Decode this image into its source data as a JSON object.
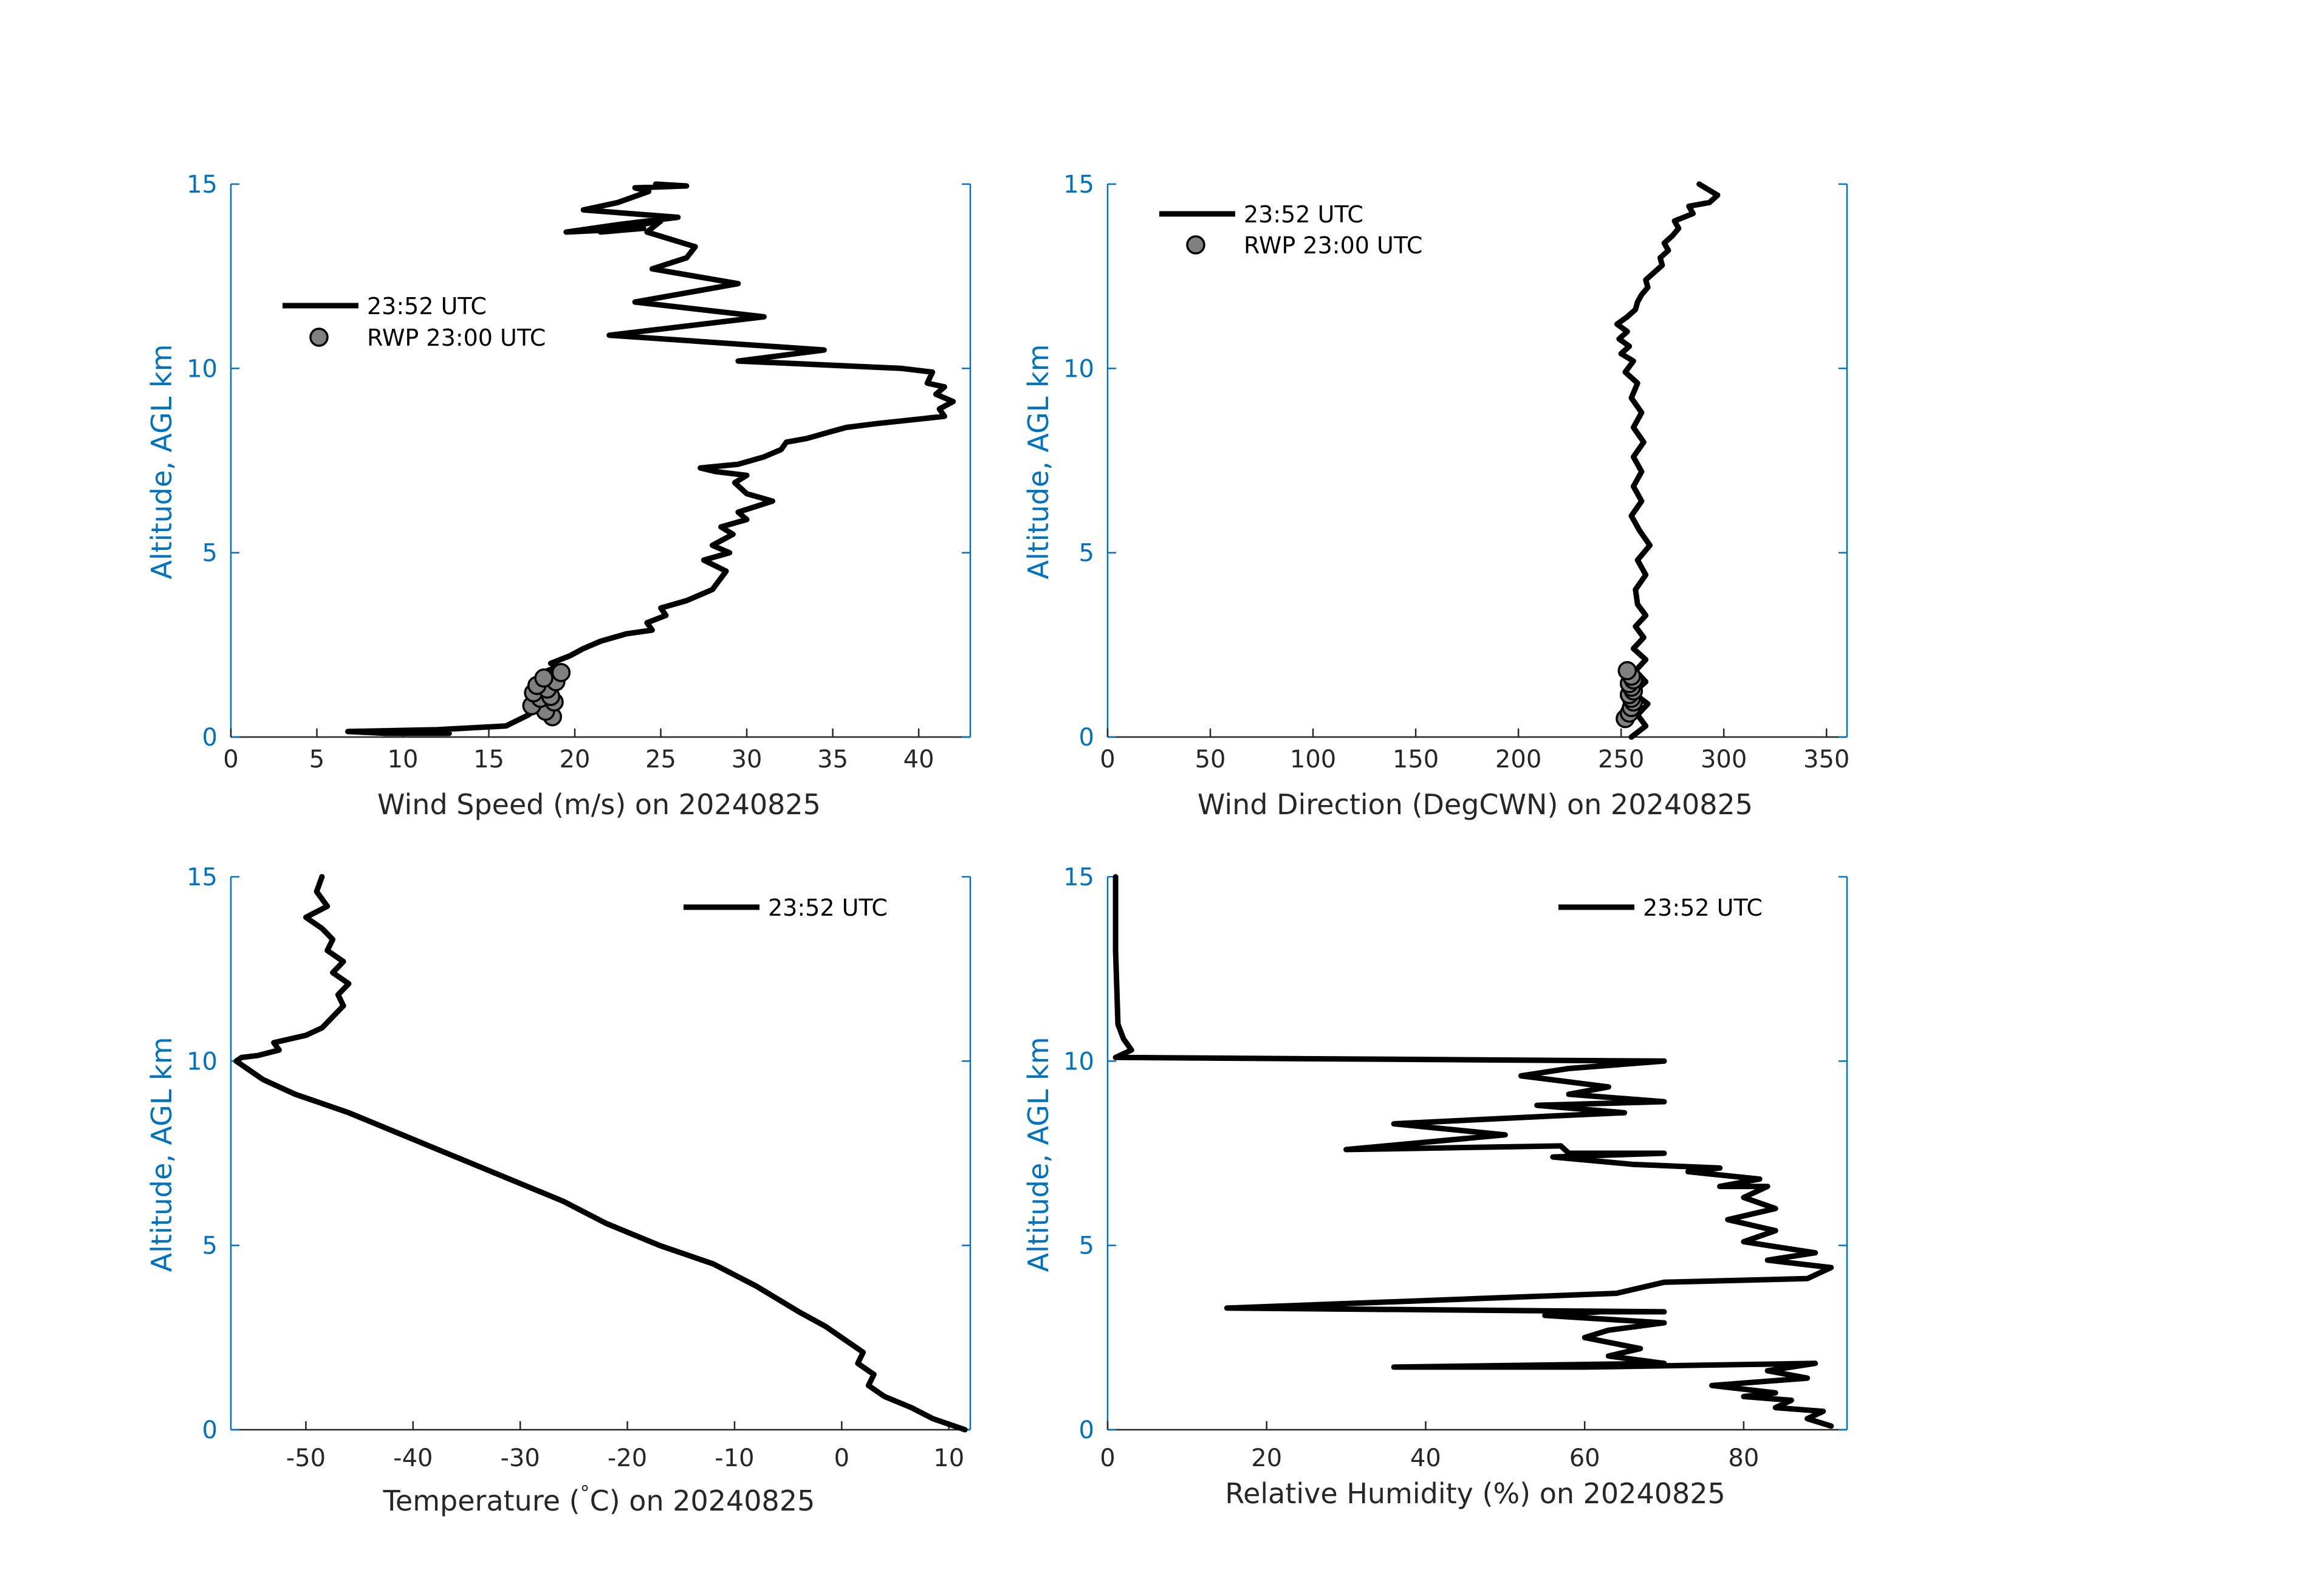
{
  "chart_data": [
    {
      "type": "line",
      "xlabel": "Wind Speed (m/s) on 20240825",
      "ylabel": "Altitude, AGL km",
      "xlim": [
        0,
        43
      ],
      "ylim": [
        0,
        15
      ],
      "xticks": [
        0,
        5,
        10,
        15,
        20,
        25,
        30,
        35,
        40
      ],
      "yticks": [
        0,
        5,
        10,
        15
      ],
      "legend_position": "upper-left",
      "series": [
        {
          "name": "23:52 UTC",
          "x": [
            12.7,
            9,
            6.8,
            12,
            16,
            17.3,
            18.2,
            18.6,
            18.8,
            18.4,
            19,
            18.6,
            19.7,
            20.5,
            21.5,
            23,
            24.5,
            24.2,
            25.3,
            25,
            26.5,
            28,
            28.8,
            27.5,
            29,
            28,
            29.2,
            28.5,
            30,
            29.5,
            31.5,
            30,
            29.3,
            30,
            28.2,
            27.3,
            29.5,
            31,
            32,
            32.3,
            33.5,
            35,
            35.8,
            37.5,
            41.5,
            41.2,
            42,
            41,
            41.5,
            40.5,
            40.8,
            39,
            29.5,
            34.5,
            22,
            31,
            23.5,
            29.5,
            24.5,
            26.5,
            27,
            24.2,
            25,
            21.5,
            24,
            19.5,
            22.5,
            26,
            20.5,
            22.5,
            24.3,
            23.5,
            26.5,
            24.7
          ],
          "y": [
            0.1,
            0.1,
            0.15,
            0.2,
            0.3,
            0.6,
            0.9,
            1.2,
            1.5,
            1.8,
            1.9,
            2.0,
            2.2,
            2.4,
            2.6,
            2.8,
            2.9,
            3.1,
            3.3,
            3.5,
            3.7,
            4.0,
            4.5,
            4.8,
            5.0,
            5.2,
            5.5,
            5.7,
            5.9,
            6.1,
            6.4,
            6.6,
            6.9,
            7.1,
            7.2,
            7.3,
            7.4,
            7.6,
            7.8,
            8.0,
            8.1,
            8.3,
            8.4,
            8.5,
            8.7,
            8.9,
            9.1,
            9.3,
            9.5,
            9.6,
            9.9,
            10.0,
            10.2,
            10.5,
            10.9,
            11.4,
            11.8,
            12.3,
            12.7,
            13.0,
            13.3,
            13.7,
            14.0,
            13.7,
            13.8,
            13.7,
            13.9,
            14.1,
            14.3,
            14.5,
            14.8,
            14.9,
            14.95,
            15.0
          ]
        },
        {
          "name": "RWP 23:00 UTC",
          "marker": "circle",
          "x": [
            18.7,
            18.3,
            17.5,
            18.8,
            18.0,
            18.6,
            17.6,
            18.4,
            17.8,
            18.9,
            18.2,
            19.2
          ],
          "y": [
            0.55,
            0.7,
            0.85,
            0.95,
            1.05,
            1.1,
            1.2,
            1.3,
            1.4,
            1.5,
            1.6,
            1.75
          ]
        }
      ]
    },
    {
      "type": "line",
      "xlabel": "Wind Direction (DegCWN) on 20240825",
      "ylabel": "Altitude, AGL km",
      "xlim": [
        0,
        360
      ],
      "ylim": [
        0,
        15
      ],
      "xticks": [
        0,
        50,
        100,
        150,
        200,
        250,
        300,
        350
      ],
      "yticks": [
        0,
        5,
        10,
        15
      ],
      "legend_position": "upper-left",
      "series": [
        {
          "name": "23:52 UTC",
          "x": [
            255,
            262,
            258,
            263,
            256,
            262,
            257,
            262,
            256,
            261,
            257,
            262,
            258,
            257,
            262,
            258,
            264,
            259,
            255,
            260,
            256,
            260,
            256,
            261,
            256,
            260,
            255,
            258,
            252,
            256,
            250,
            254,
            249,
            253,
            248,
            253,
            257,
            258,
            260,
            263,
            262,
            266,
            270,
            269,
            273,
            271,
            275,
            278,
            276,
            285,
            283,
            293,
            297,
            291,
            288
          ],
          "y": [
            0.0,
            0.3,
            0.6,
            0.9,
            1.2,
            1.5,
            1.8,
            2.1,
            2.4,
            2.7,
            3.0,
            3.3,
            3.6,
            4.0,
            4.4,
            4.8,
            5.2,
            5.6,
            6.0,
            6.4,
            6.8,
            7.2,
            7.6,
            8.0,
            8.4,
            8.8,
            9.2,
            9.6,
            9.9,
            10.2,
            10.4,
            10.6,
            10.8,
            11.0,
            11.2,
            11.4,
            11.6,
            11.8,
            12.0,
            12.2,
            12.4,
            12.6,
            12.8,
            13.0,
            13.2,
            13.4,
            13.6,
            13.8,
            14.0,
            14.2,
            14.4,
            14.5,
            14.7,
            14.9,
            15.0
          ]
        },
        {
          "name": "RWP 23:00 UTC",
          "marker": "circle",
          "x": [
            252,
            254,
            255,
            256,
            255,
            254,
            256,
            255,
            254,
            256,
            255,
            253
          ],
          "y": [
            0.5,
            0.65,
            0.8,
            0.95,
            1.05,
            1.15,
            1.25,
            1.35,
            1.45,
            1.55,
            1.65,
            1.8
          ]
        }
      ]
    },
    {
      "type": "line",
      "xlabel": "Temperature (°C) on 20240825",
      "ylabel": "Altitude, AGL km",
      "xlim": [
        -57,
        12
      ],
      "ylim": [
        0,
        15
      ],
      "xticks": [
        -50,
        -40,
        -30,
        -20,
        -10,
        0,
        10
      ],
      "yticks": [
        0,
        5,
        10,
        15
      ],
      "legend_position": "top-right",
      "series": [
        {
          "name": "23:52 UTC",
          "x": [
            11.5,
            10.5,
            8.5,
            6.5,
            4,
            2.5,
            3,
            1.5,
            2,
            0.5,
            -1.5,
            -4,
            -8,
            -12,
            -17,
            -22,
            -26,
            -31,
            -36,
            -41,
            -46,
            -51,
            -54,
            -55.5,
            -56.5,
            -56,
            -54.5,
            -52.5,
            -53,
            -50,
            -48.5,
            -47.5,
            -46.5,
            -47,
            -46,
            -47.5,
            -46.5,
            -48,
            -47.5,
            -48.5,
            -50,
            -48,
            -49,
            -48.5
          ],
          "y": [
            0.0,
            0.1,
            0.3,
            0.6,
            0.9,
            1.2,
            1.5,
            1.8,
            2.1,
            2.4,
            2.8,
            3.2,
            3.9,
            4.5,
            5.0,
            5.6,
            6.2,
            6.8,
            7.4,
            8.0,
            8.6,
            9.1,
            9.5,
            9.8,
            10.0,
            10.1,
            10.15,
            10.3,
            10.5,
            10.7,
            10.9,
            11.2,
            11.5,
            11.8,
            12.1,
            12.4,
            12.7,
            13.0,
            13.3,
            13.6,
            13.9,
            14.2,
            14.6,
            15.0
          ]
        }
      ]
    },
    {
      "type": "line",
      "xlabel": "Relative Humidity (%) on 20240825",
      "ylabel": "Altitude, AGL km",
      "xlim": [
        0,
        93
      ],
      "ylim": [
        0,
        15
      ],
      "xticks": [
        0,
        20,
        40,
        60,
        80
      ],
      "yticks": [
        0,
        5,
        10,
        15
      ],
      "legend_position": "top-right",
      "series": [
        {
          "name": "23:52 UTC",
          "x": [
            91,
            88,
            90,
            84,
            86,
            80,
            84,
            76,
            88,
            83,
            89,
            60,
            36,
            70,
            63,
            67,
            60,
            63,
            70,
            55,
            62,
            70,
            15,
            64,
            70,
            88,
            91,
            83,
            89,
            80,
            84,
            78,
            84,
            80,
            83,
            77,
            82,
            73,
            77,
            66,
            56,
            70,
            58,
            57,
            30,
            50,
            36,
            55,
            65,
            54,
            70,
            58,
            63,
            52,
            58,
            70,
            1,
            3,
            2,
            1.3,
            1,
            1
          ],
          "y": [
            0.1,
            0.3,
            0.5,
            0.6,
            0.8,
            0.9,
            1.0,
            1.2,
            1.4,
            1.6,
            1.8,
            1.7,
            1.7,
            1.8,
            2.0,
            2.2,
            2.5,
            2.7,
            2.9,
            3.1,
            3.2,
            3.2,
            3.3,
            3.7,
            4.0,
            4.1,
            4.4,
            4.6,
            4.8,
            5.1,
            5.4,
            5.7,
            6.0,
            6.3,
            6.6,
            6.6,
            6.8,
            7.0,
            7.1,
            7.2,
            7.4,
            7.5,
            7.5,
            7.7,
            7.6,
            8.0,
            8.3,
            8.5,
            8.6,
            8.8,
            8.9,
            9.1,
            9.3,
            9.6,
            9.8,
            10.0,
            10.1,
            10.3,
            10.6,
            11.0,
            13.0,
            15.0
          ]
        }
      ]
    }
  ]
}
